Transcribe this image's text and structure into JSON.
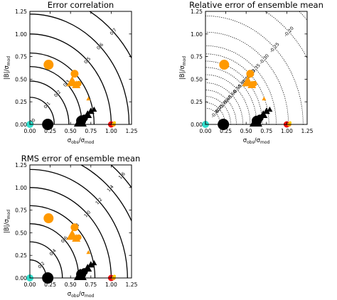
{
  "colors": {
    "black": "#000000",
    "orange": "#ff9900",
    "red": "#ee1111",
    "cyan": "#33ddcc",
    "yellow": "#ffcc00"
  },
  "axes": {
    "x_ticks": [
      "0.00",
      "0.25",
      "0.50",
      "0.75",
      "1.00",
      "1.25"
    ],
    "y_ticks": [
      "0.00",
      "0.25",
      "0.50",
      "0.75",
      "1.00",
      "1.25"
    ],
    "xlabel": {
      "sigma": "σ",
      "obs": "obs",
      "slash": "/",
      "mod": "mod"
    },
    "ylabel": {
      "b": "|B|/",
      "sigma": "σ",
      "mod": "mod"
    }
  },
  "chart_data": [
    {
      "type": "scatter",
      "title": "Error correlation",
      "xlim": [
        0,
        1.25
      ],
      "ylim": [
        0,
        1.25
      ],
      "contour_style": "solid",
      "contours": [
        {
          "label": "0.0",
          "r": 0.04
        },
        {
          "label": "0.1",
          "r": 0.3
        },
        {
          "label": "0.2",
          "r": 0.48
        },
        {
          "label": "0.3",
          "r": 0.64
        },
        {
          "label": "0.4",
          "r": 0.79
        },
        {
          "label": "0.5",
          "r": 1.0
        },
        {
          "label": "0.6",
          "r": 1.22
        },
        {
          "label": "0.7",
          "r": 1.45
        }
      ],
      "points": [
        {
          "shape": "circle",
          "color": "#33ddcc",
          "x": 0.0,
          "y": 0.0,
          "size": 5
        },
        {
          "shape": "circle",
          "color": "#000000",
          "x": 0.22,
          "y": 0.0,
          "size": 8
        },
        {
          "shape": "circle",
          "color": "#000000",
          "x": 0.63,
          "y": 0.04,
          "size": 7
        },
        {
          "shape": "circle",
          "color": "#000000",
          "x": 0.67,
          "y": 0.07,
          "size": 5
        },
        {
          "shape": "triangle",
          "color": "#000000",
          "x": 0.62,
          "y": 0.02,
          "size": 9
        },
        {
          "shape": "triangle",
          "color": "#000000",
          "x": 0.71,
          "y": 0.1,
          "size": 6
        },
        {
          "shape": "triangle",
          "color": "#000000",
          "x": 0.75,
          "y": 0.14,
          "size": 5
        },
        {
          "shape": "triangle",
          "color": "#000000",
          "x": 0.79,
          "y": 0.16,
          "size": 4
        },
        {
          "shape": "circle",
          "color": "#ff9900",
          "x": 0.23,
          "y": 0.66,
          "size": 7
        },
        {
          "shape": "circle",
          "color": "#ff9900",
          "x": 0.55,
          "y": 0.56,
          "size": 5.5
        },
        {
          "shape": "triangle",
          "color": "#ff9900",
          "x": 0.52,
          "y": 0.46,
          "size": 8
        },
        {
          "shape": "triangle",
          "color": "#ff9900",
          "x": 0.57,
          "y": 0.43,
          "size": 6
        },
        {
          "shape": "circle",
          "color": "#ff9900",
          "x": 0.6,
          "y": 0.45,
          "size": 4
        },
        {
          "shape": "triangle",
          "color": "#ff9900",
          "x": 0.72,
          "y": 0.28,
          "size": 3
        },
        {
          "shape": "circle",
          "color": "#ee1111",
          "x": 1.0,
          "y": 0.0,
          "size": 4.5
        },
        {
          "shape": "circle",
          "color": "#ff9900",
          "x": 1.03,
          "y": 0.0,
          "size": 3
        },
        {
          "shape": "circle",
          "color": "#ffcc00",
          "x": 1.04,
          "y": 0.02,
          "size": 2
        }
      ]
    },
    {
      "type": "scatter",
      "title": "Relative error of ensemble mean",
      "xlim": [
        0,
        1.25
      ],
      "ylim": [
        0,
        1.25
      ],
      "contour_style": "dotted",
      "contours": [
        {
          "label": "-0.80",
          "r": 0.18
        },
        {
          "label": "-0.75",
          "r": 0.24
        },
        {
          "label": "-0.70",
          "r": 0.31
        },
        {
          "label": "-0.65",
          "r": 0.38
        },
        {
          "label": "-0.60",
          "r": 0.46
        },
        {
          "label": "-0.55",
          "r": 0.55
        },
        {
          "label": "-0.50",
          "r": 0.63
        },
        {
          "label": "-0.45",
          "r": 0.7
        },
        {
          "label": "-0.40",
          "r": 0.78
        },
        {
          "label": "-0.35",
          "r": 0.87
        },
        {
          "label": "-0.30",
          "r": 1.02
        },
        {
          "label": "-0.25",
          "r": 1.2
        },
        {
          "label": "-0.20",
          "r": 1.45
        },
        {
          "label": "",
          "r": 1.7
        }
      ],
      "points": [
        {
          "shape": "circle",
          "color": "#33ddcc",
          "x": 0.0,
          "y": 0.0,
          "size": 5
        },
        {
          "shape": "circle",
          "color": "#000000",
          "x": 0.22,
          "y": 0.0,
          "size": 8
        },
        {
          "shape": "circle",
          "color": "#000000",
          "x": 0.63,
          "y": 0.04,
          "size": 7
        },
        {
          "shape": "circle",
          "color": "#000000",
          "x": 0.67,
          "y": 0.07,
          "size": 5
        },
        {
          "shape": "triangle",
          "color": "#000000",
          "x": 0.62,
          "y": 0.02,
          "size": 9
        },
        {
          "shape": "triangle",
          "color": "#000000",
          "x": 0.71,
          "y": 0.1,
          "size": 6
        },
        {
          "shape": "triangle",
          "color": "#000000",
          "x": 0.75,
          "y": 0.14,
          "size": 5
        },
        {
          "shape": "triangle",
          "color": "#000000",
          "x": 0.79,
          "y": 0.16,
          "size": 4
        },
        {
          "shape": "circle",
          "color": "#ff9900",
          "x": 0.23,
          "y": 0.66,
          "size": 7
        },
        {
          "shape": "circle",
          "color": "#ff9900",
          "x": 0.55,
          "y": 0.56,
          "size": 5.5
        },
        {
          "shape": "triangle",
          "color": "#ff9900",
          "x": 0.52,
          "y": 0.46,
          "size": 8
        },
        {
          "shape": "triangle",
          "color": "#ff9900",
          "x": 0.57,
          "y": 0.43,
          "size": 6
        },
        {
          "shape": "circle",
          "color": "#ff9900",
          "x": 0.6,
          "y": 0.45,
          "size": 4
        },
        {
          "shape": "triangle",
          "color": "#ff9900",
          "x": 0.72,
          "y": 0.28,
          "size": 3
        },
        {
          "shape": "circle",
          "color": "#ee1111",
          "x": 1.0,
          "y": 0.0,
          "size": 4.5
        },
        {
          "shape": "circle",
          "color": "#ff9900",
          "x": 1.03,
          "y": 0.0,
          "size": 3
        },
        {
          "shape": "circle",
          "color": "#ffcc00",
          "x": 1.04,
          "y": 0.02,
          "size": 2
        }
      ]
    },
    {
      "type": "scatter",
      "title": "RMS error of ensemble mean",
      "xlim": [
        0,
        1.25
      ],
      "ylim": [
        0,
        1.25
      ],
      "contour_style": "solid",
      "contours": [
        {
          "label": "0.2",
          "r": 0.2
        },
        {
          "label": "0.4",
          "r": 0.4
        },
        {
          "label": "0.6",
          "r": 0.6
        },
        {
          "label": "0.8",
          "r": 0.8
        },
        {
          "label": "1.0",
          "r": 1.0
        },
        {
          "label": "1.2",
          "r": 1.2
        },
        {
          "label": "1.4",
          "r": 1.4
        },
        {
          "label": "1.6",
          "r": 1.6
        }
      ],
      "points": [
        {
          "shape": "circle",
          "color": "#33ddcc",
          "x": 0.0,
          "y": 0.0,
          "size": 5
        },
        {
          "shape": "circle",
          "color": "#000000",
          "x": 0.22,
          "y": 0.0,
          "size": 8
        },
        {
          "shape": "circle",
          "color": "#000000",
          "x": 0.63,
          "y": 0.04,
          "size": 7
        },
        {
          "shape": "circle",
          "color": "#000000",
          "x": 0.67,
          "y": 0.07,
          "size": 5
        },
        {
          "shape": "triangle",
          "color": "#000000",
          "x": 0.62,
          "y": 0.02,
          "size": 9
        },
        {
          "shape": "triangle",
          "color": "#000000",
          "x": 0.71,
          "y": 0.1,
          "size": 6
        },
        {
          "shape": "triangle",
          "color": "#000000",
          "x": 0.75,
          "y": 0.14,
          "size": 5
        },
        {
          "shape": "triangle",
          "color": "#000000",
          "x": 0.79,
          "y": 0.16,
          "size": 4
        },
        {
          "shape": "circle",
          "color": "#ff9900",
          "x": 0.23,
          "y": 0.66,
          "size": 7
        },
        {
          "shape": "circle",
          "color": "#ff9900",
          "x": 0.55,
          "y": 0.56,
          "size": 5.5
        },
        {
          "shape": "triangle",
          "color": "#ff9900",
          "x": 0.52,
          "y": 0.46,
          "size": 8
        },
        {
          "shape": "triangle",
          "color": "#ff9900",
          "x": 0.57,
          "y": 0.43,
          "size": 6
        },
        {
          "shape": "circle",
          "color": "#ff9900",
          "x": 0.6,
          "y": 0.45,
          "size": 4
        },
        {
          "shape": "triangle",
          "color": "#ff9900",
          "x": 0.72,
          "y": 0.28,
          "size": 3
        },
        {
          "shape": "circle",
          "color": "#ee1111",
          "x": 1.0,
          "y": 0.0,
          "size": 4.5
        },
        {
          "shape": "circle",
          "color": "#ff9900",
          "x": 1.03,
          "y": 0.0,
          "size": 3
        },
        {
          "shape": "circle",
          "color": "#ffcc00",
          "x": 1.04,
          "y": 0.02,
          "size": 2
        }
      ]
    }
  ]
}
